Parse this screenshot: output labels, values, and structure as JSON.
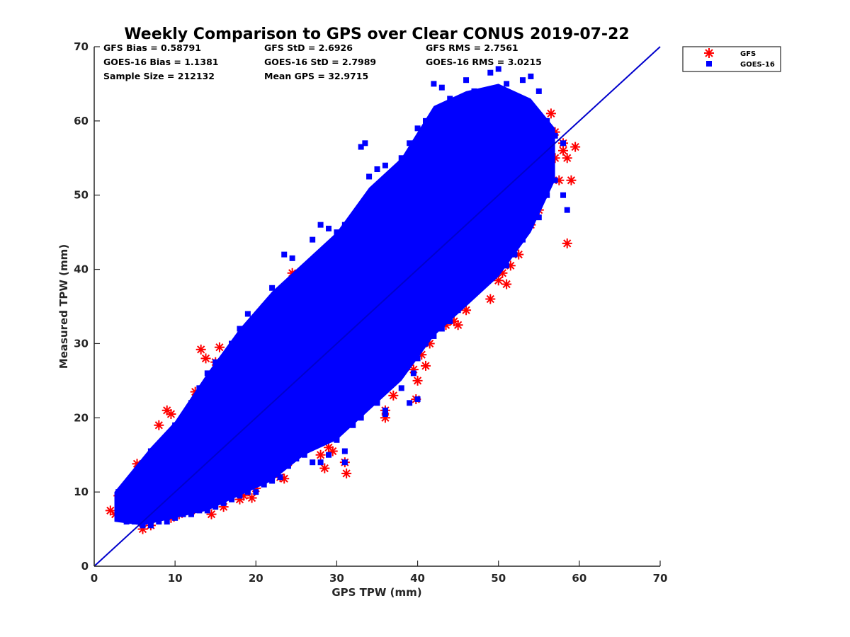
{
  "chart_data": {
    "type": "scatter",
    "title": "Weekly Comparison to GPS over Clear CONUS 2019-07-22",
    "xlabel": "GPS TPW (mm)",
    "ylabel": "Measured TPW (mm)",
    "xlim": [
      0,
      70
    ],
    "ylim": [
      0,
      70
    ],
    "xticks": [
      0,
      10,
      20,
      30,
      40,
      50,
      60,
      70
    ],
    "yticks": [
      0,
      10,
      20,
      30,
      40,
      50,
      60,
      70
    ],
    "xtick_labels": [
      "0",
      "10",
      "20",
      "30",
      "40",
      "50",
      "60",
      "70"
    ],
    "ytick_labels": [
      "0",
      "10",
      "20",
      "30",
      "40",
      "50",
      "60",
      "70"
    ],
    "grid": false,
    "legend_position": "outside-top-right",
    "reference_line": {
      "x": [
        0,
        70
      ],
      "y": [
        0,
        70
      ],
      "color": "#0000cc"
    },
    "stats": {
      "gfs_bias": "GFS Bias = 0.58791",
      "gfs_std": "GFS StD = 2.6926",
      "gfs_rms": "GFS RMS = 2.7561",
      "goes_bias": "GOES-16 Bias = 1.1381",
      "goes_std": "GOES-16 StD = 2.7989",
      "goes_rms": "GOES-16 RMS = 3.0215",
      "sample_size": "Sample Size = 212132",
      "mean_gps": "Mean GPS = 32.9715"
    },
    "series": [
      {
        "name": "GFS",
        "marker": "asterisk",
        "color": "#ff0000",
        "points": [
          [
            2.0,
            7.5
          ],
          [
            2.6,
            7.0
          ],
          [
            3.0,
            9.5
          ],
          [
            3.5,
            8.0
          ],
          [
            4.5,
            7.2
          ],
          [
            5.5,
            12.5
          ],
          [
            5.3,
            13.8
          ],
          [
            6.0,
            5.0
          ],
          [
            6.5,
            11.0
          ],
          [
            7.0,
            5.5
          ],
          [
            7.5,
            12.0
          ],
          [
            8.0,
            19.0
          ],
          [
            9.0,
            21.0
          ],
          [
            9.5,
            20.5
          ],
          [
            9.5,
            6.5
          ],
          [
            10.5,
            7.0
          ],
          [
            11.0,
            16.0
          ],
          [
            12.0,
            7.5
          ],
          [
            12.5,
            23.5
          ],
          [
            13.0,
            8.0
          ],
          [
            13.2,
            29.2
          ],
          [
            13.8,
            28.0
          ],
          [
            14.5,
            7.0
          ],
          [
            15.0,
            27.5
          ],
          [
            15.5,
            29.5
          ],
          [
            16.0,
            8.0
          ],
          [
            16.5,
            11.0
          ],
          [
            17.0,
            26.5
          ],
          [
            18.0,
            9.0
          ],
          [
            18.5,
            9.5
          ],
          [
            19.0,
            31.8
          ],
          [
            19.5,
            9.2
          ],
          [
            20.0,
            10.5
          ],
          [
            20.5,
            12.0
          ],
          [
            21.5,
            30.0
          ],
          [
            22.0,
            13.5
          ],
          [
            22.5,
            13.0
          ],
          [
            23.0,
            12.0
          ],
          [
            23.5,
            11.8
          ],
          [
            24.0,
            14.0
          ],
          [
            24.5,
            39.5
          ],
          [
            23.5,
            37.0
          ],
          [
            25.0,
            15.0
          ],
          [
            25.5,
            16.0
          ],
          [
            26.0,
            16.5
          ],
          [
            27.0,
            18.0
          ],
          [
            28.0,
            15.0
          ],
          [
            28.5,
            13.2
          ],
          [
            29.0,
            16.0
          ],
          [
            29.5,
            15.5
          ],
          [
            30.0,
            20.0
          ],
          [
            31.0,
            14.0
          ],
          [
            31.2,
            12.5
          ],
          [
            31.5,
            22.0
          ],
          [
            32.0,
            21.5
          ],
          [
            33.0,
            24.0
          ],
          [
            33.5,
            46.5
          ],
          [
            34.0,
            48.0
          ],
          [
            34.5,
            48.5
          ],
          [
            35.0,
            26.0
          ],
          [
            35.5,
            25.0
          ],
          [
            36.0,
            20.0
          ],
          [
            36.0,
            21.0
          ],
          [
            36.5,
            51.5
          ],
          [
            37.0,
            23.0
          ],
          [
            37.5,
            28.0
          ],
          [
            38.0,
            27.0
          ],
          [
            38.5,
            29.0
          ],
          [
            39.0,
            27.5
          ],
          [
            39.5,
            26.5
          ],
          [
            39.8,
            22.5
          ],
          [
            40.0,
            25.0
          ],
          [
            40.5,
            28.5
          ],
          [
            41.0,
            27.0
          ],
          [
            41.5,
            30.0
          ],
          [
            42.0,
            32.0
          ],
          [
            42.5,
            32.5
          ],
          [
            43.0,
            33.5
          ],
          [
            43.5,
            32.5
          ],
          [
            44.0,
            34.5
          ],
          [
            44.5,
            33.0
          ],
          [
            45.0,
            32.5
          ],
          [
            45.5,
            36.5
          ],
          [
            46.0,
            34.5
          ],
          [
            46.5,
            38.0
          ],
          [
            47.0,
            37.5
          ],
          [
            48.0,
            38.0
          ],
          [
            48.5,
            38.5
          ],
          [
            49.0,
            36.0
          ],
          [
            49.5,
            40.0
          ],
          [
            50.0,
            38.5
          ],
          [
            50.5,
            39.5
          ],
          [
            51.0,
            38.0
          ],
          [
            51.5,
            40.5
          ],
          [
            52.0,
            43.0
          ],
          [
            52.5,
            42.0
          ],
          [
            53.0,
            45.0
          ],
          [
            53.5,
            45.5
          ],
          [
            54.0,
            46.0
          ],
          [
            54.5,
            47.5
          ],
          [
            55.0,
            48.0
          ],
          [
            55.5,
            50.0
          ],
          [
            56.0,
            53.0
          ],
          [
            56.5,
            61.0
          ],
          [
            57.0,
            55.0
          ],
          [
            57.5,
            52.0
          ],
          [
            58.0,
            57.0
          ],
          [
            58.5,
            43.5
          ],
          [
            59.0,
            52.0
          ],
          [
            59.5,
            56.5
          ],
          [
            58.5,
            55.0
          ],
          [
            57.0,
            58.5
          ],
          [
            55.0,
            60.0
          ],
          [
            52.0,
            54.5
          ],
          [
            48.0,
            52.0
          ],
          [
            44.0,
            47.5
          ],
          [
            40.0,
            44.0
          ],
          [
            36.0,
            40.5
          ],
          [
            32.0,
            36.5
          ],
          [
            28.0,
            32.0
          ],
          [
            24.0,
            28.5
          ],
          [
            20.0,
            24.5
          ],
          [
            16.0,
            20.0
          ],
          [
            12.0,
            16.5
          ],
          [
            8.0,
            12.0
          ],
          [
            4.0,
            8.0
          ],
          [
            6.0,
            6.5
          ],
          [
            10.0,
            10.5
          ],
          [
            14.0,
            14.5
          ],
          [
            18.0,
            18.0
          ],
          [
            22.0,
            21.5
          ],
          [
            26.0,
            25.0
          ],
          [
            30.0,
            29.0
          ],
          [
            34.0,
            33.0
          ],
          [
            38.0,
            37.0
          ],
          [
            42.0,
            41.0
          ],
          [
            46.0,
            45.0
          ],
          [
            50.0,
            49.5
          ],
          [
            54.0,
            53.5
          ],
          [
            58.0,
            56.0
          ]
        ]
      },
      {
        "name": "GOES-16",
        "marker": "square",
        "color": "#0000ff",
        "points": [
          [
            3.0,
            10.0
          ],
          [
            4.0,
            10.0
          ],
          [
            5.0,
            9.0
          ],
          [
            6.0,
            8.0
          ],
          [
            7.0,
            15.5
          ],
          [
            8.0,
            15.0
          ],
          [
            9.0,
            17.0
          ],
          [
            10.0,
            19.0
          ],
          [
            11.0,
            20.0
          ],
          [
            12.0,
            22.0
          ],
          [
            13.0,
            24.0
          ],
          [
            14.0,
            26.0
          ],
          [
            15.0,
            27.5
          ],
          [
            16.0,
            28.0
          ],
          [
            17.0,
            30.0
          ],
          [
            18.0,
            32.0
          ],
          [
            19.0,
            34.0
          ],
          [
            20.0,
            32.5
          ],
          [
            21.0,
            35.0
          ],
          [
            22.0,
            37.5
          ],
          [
            23.5,
            42.0
          ],
          [
            24.5,
            41.5
          ],
          [
            25.0,
            36.0
          ],
          [
            26.0,
            40.0
          ],
          [
            27.0,
            44.0
          ],
          [
            28.0,
            46.0
          ],
          [
            29.0,
            45.5
          ],
          [
            30.0,
            45.0
          ],
          [
            31.0,
            46.0
          ],
          [
            32.0,
            47.0
          ],
          [
            33.0,
            56.5
          ],
          [
            34.0,
            52.5
          ],
          [
            35.0,
            53.5
          ],
          [
            36.0,
            54.0
          ],
          [
            37.0,
            53.0
          ],
          [
            38.0,
            55.0
          ],
          [
            39.0,
            57.0
          ],
          [
            40.0,
            59.0
          ],
          [
            41.0,
            60.0
          ],
          [
            42.0,
            65.0
          ],
          [
            43.0,
            64.5
          ],
          [
            44.0,
            63.0
          ],
          [
            45.0,
            62.5
          ],
          [
            46.0,
            65.5
          ],
          [
            47.0,
            64.0
          ],
          [
            48.0,
            63.5
          ],
          [
            49.0,
            66.5
          ],
          [
            50.0,
            67.0
          ],
          [
            51.0,
            65.0
          ],
          [
            52.0,
            63.0
          ],
          [
            53.0,
            65.5
          ],
          [
            54.0,
            66.0
          ],
          [
            55.0,
            64.0
          ],
          [
            56.0,
            60.0
          ],
          [
            57.0,
            58.0
          ],
          [
            58.0,
            57.0
          ],
          [
            58.5,
            48.0
          ],
          [
            58.0,
            50.0
          ],
          [
            57.0,
            52.0
          ],
          [
            56.0,
            50.0
          ],
          [
            55.0,
            47.0
          ],
          [
            54.0,
            46.0
          ],
          [
            53.0,
            44.0
          ],
          [
            52.0,
            42.0
          ],
          [
            51.0,
            40.5
          ],
          [
            50.0,
            40.0
          ],
          [
            49.0,
            39.0
          ],
          [
            48.0,
            38.0
          ],
          [
            47.0,
            37.0
          ],
          [
            46.0,
            36.0
          ],
          [
            45.0,
            34.5
          ],
          [
            44.0,
            33.0
          ],
          [
            43.0,
            32.0
          ],
          [
            42.0,
            31.0
          ],
          [
            41.0,
            30.0
          ],
          [
            40.0,
            28.0
          ],
          [
            39.5,
            26.0
          ],
          [
            39.0,
            22.0
          ],
          [
            38.0,
            24.0
          ],
          [
            37.0,
            25.0
          ],
          [
            36.0,
            21.0
          ],
          [
            35.0,
            22.0
          ],
          [
            34.0,
            22.0
          ],
          [
            33.0,
            20.0
          ],
          [
            32.0,
            19.0
          ],
          [
            31.0,
            15.5
          ],
          [
            31.0,
            14.0
          ],
          [
            30.0,
            17.0
          ],
          [
            29.0,
            15.0
          ],
          [
            28.0,
            14.0
          ],
          [
            27.0,
            14.0
          ],
          [
            26.0,
            15.0
          ],
          [
            25.0,
            14.5
          ],
          [
            24.0,
            13.5
          ],
          [
            23.0,
            12.0
          ],
          [
            22.0,
            11.5
          ],
          [
            21.0,
            11.0
          ],
          [
            20.0,
            10.0
          ],
          [
            19.0,
            10.0
          ],
          [
            18.0,
            9.5
          ],
          [
            17.0,
            9.0
          ],
          [
            16.0,
            8.5
          ],
          [
            15.0,
            8.0
          ],
          [
            14.0,
            7.5
          ],
          [
            13.0,
            7.5
          ],
          [
            12.0,
            7.0
          ],
          [
            11.0,
            7.0
          ],
          [
            10.0,
            6.5
          ],
          [
            9.0,
            6.0
          ],
          [
            8.0,
            6.0
          ],
          [
            7.0,
            5.5
          ],
          [
            6.0,
            5.5
          ],
          [
            5.0,
            6.0
          ],
          [
            4.0,
            6.0
          ],
          [
            3.0,
            6.5
          ],
          [
            12.0,
            14.0
          ],
          [
            18.0,
            20.0
          ],
          [
            24.0,
            27.0
          ],
          [
            30.0,
            33.0
          ],
          [
            36.0,
            39.0
          ],
          [
            42.0,
            45.0
          ],
          [
            48.0,
            51.0
          ],
          [
            54.0,
            57.0
          ],
          [
            40.0,
            22.5
          ],
          [
            36.0,
            20.5
          ],
          [
            33.5,
            57.0
          ],
          [
            45.5,
            63.0
          ],
          [
            50.5,
            62.0
          ],
          [
            27.5,
            41.0
          ],
          [
            20.5,
            31.0
          ]
        ]
      }
    ]
  }
}
